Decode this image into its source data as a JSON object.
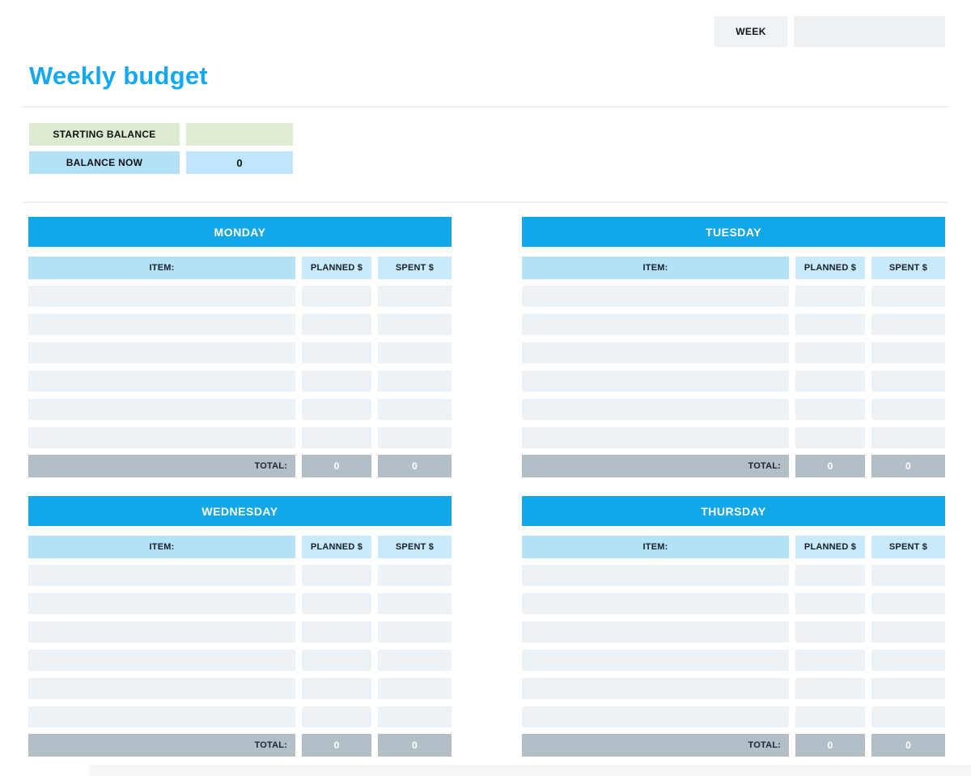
{
  "colors": {
    "accent_blue": "#12a7e8",
    "title_blue": "#14a9ee",
    "light_blue_cell": "#b2e1f8",
    "light_blue_field": "#bfe6fa",
    "lighter_blue_cell": "#c9eafb",
    "green_cell": "#dcead0",
    "green_field": "#deecd2",
    "row_cell": "#edf2f6",
    "total_gray": "#b3bfc7",
    "field_gray": "#edf1f4",
    "label_gray": "#f0f3f6"
  },
  "week": {
    "label": "WEEK",
    "value": ""
  },
  "title": "Weekly budget",
  "balance": {
    "starting_label": "STARTING BALANCE",
    "starting_value": "",
    "now_label": "BALANCE NOW",
    "now_value": "0"
  },
  "tables": {
    "column_headers": {
      "item": "ITEM:",
      "planned": "PLANNED $",
      "spent": "SPENT $"
    },
    "total_label": "TOTAL:",
    "empty_rows_per_day": 6,
    "days": [
      {
        "name": "MONDAY",
        "total_planned": "0",
        "total_spent": "0"
      },
      {
        "name": "TUESDAY",
        "total_planned": "0",
        "total_spent": "0"
      },
      {
        "name": "WEDNESDAY",
        "total_planned": "0",
        "total_spent": "0"
      },
      {
        "name": "THURSDAY",
        "total_planned": "0",
        "total_spent": "0"
      }
    ]
  }
}
